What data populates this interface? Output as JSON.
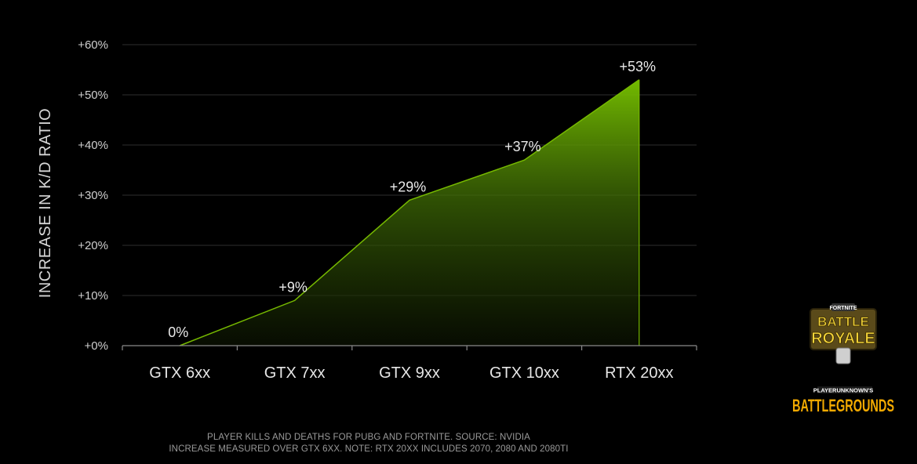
{
  "chart_data": {
    "type": "area",
    "categories": [
      "GTX 6xx",
      "GTX 7xx",
      "GTX 9xx",
      "GTX 10xx",
      "RTX 20xx"
    ],
    "series": [
      {
        "values": [
          0,
          9,
          29,
          37,
          53
        ],
        "data_labels": [
          "0%",
          "+9%",
          "+29%",
          "+37%",
          "+53%"
        ]
      }
    ],
    "ylabel": "INCREASE IN K/D RATIO",
    "xlabel": "",
    "ylim": [
      0,
      60
    ],
    "yticks": [
      0,
      10,
      20,
      30,
      40,
      50,
      60
    ],
    "ytick_labels": [
      "+0%",
      "+10%",
      "+20%",
      "+30%",
      "+40%",
      "+50%",
      "+60%"
    ],
    "grid": true,
    "colors": {
      "area_top": "#76b900",
      "line": "#76b900",
      "grid": "#2e2e2e",
      "axis": "#8a8a8a"
    }
  },
  "footnotes": [
    "PLAYER KILLS AND DEATHS FOR PUBG AND FORTNITE. SOURCE: NVIDIA",
    "INCREASE MEASURED OVER GTX  6XX. NOTE: RTX 20XX INCLUDES 2070, 2080 AND 2080TI"
  ],
  "logos": {
    "fortnite": {
      "top_text": "FORTNITE",
      "line1": "BATTLE",
      "line2": "ROYALE",
      "color": "#f5d53a"
    },
    "pubg": {
      "top_text": "PLAYERUNKNOWN'S",
      "main_text": "BATTLEGROUNDS",
      "color": "#f2a900"
    }
  }
}
